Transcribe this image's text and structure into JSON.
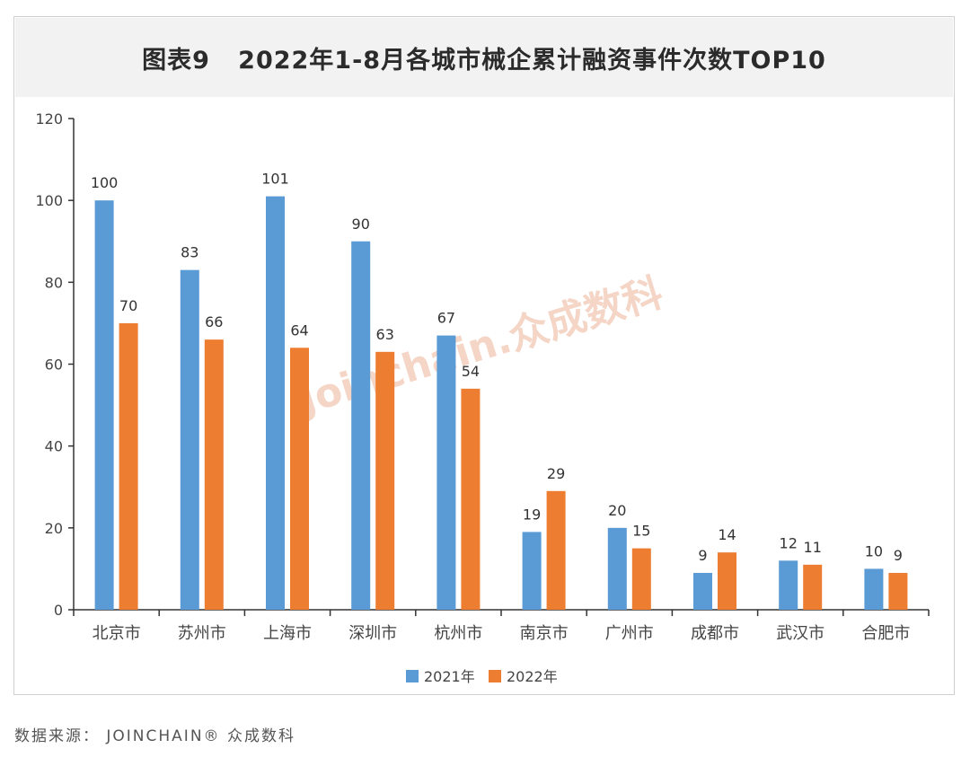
{
  "title": "图表9   2022年1-8月各城市械企累计融资事件次数TOP10",
  "source": "数据来源： JOINCHAIN® 众成数科",
  "watermark": "Joinchain.众成数科",
  "colors": {
    "series_2021": "#5b9bd5",
    "series_2022": "#ed7d31",
    "axis": "#333333",
    "tick_text": "#444444",
    "watermark": "#f4d5c6"
  },
  "chart_data": {
    "type": "bar",
    "title": "图表9   2022年1-8月各城市械企累计融资事件次数TOP10",
    "xlabel": "",
    "ylabel": "",
    "categories": [
      "北京市",
      "苏州市",
      "上海市",
      "深圳市",
      "杭州市",
      "南京市",
      "广州市",
      "成都市",
      "武汉市",
      "合肥市"
    ],
    "series": [
      {
        "name": "2021年",
        "color": "#5b9bd5",
        "values": [
          100,
          83,
          101,
          90,
          67,
          19,
          20,
          9,
          12,
          10
        ]
      },
      {
        "name": "2022年",
        "color": "#ed7d31",
        "values": [
          70,
          66,
          64,
          63,
          54,
          29,
          15,
          14,
          11,
          9
        ]
      }
    ],
    "ylim": [
      0,
      120
    ],
    "yticks": [
      0,
      20,
      40,
      60,
      80,
      100,
      120
    ],
    "grid": false,
    "data_labels": true,
    "legend_position": "bottom"
  }
}
